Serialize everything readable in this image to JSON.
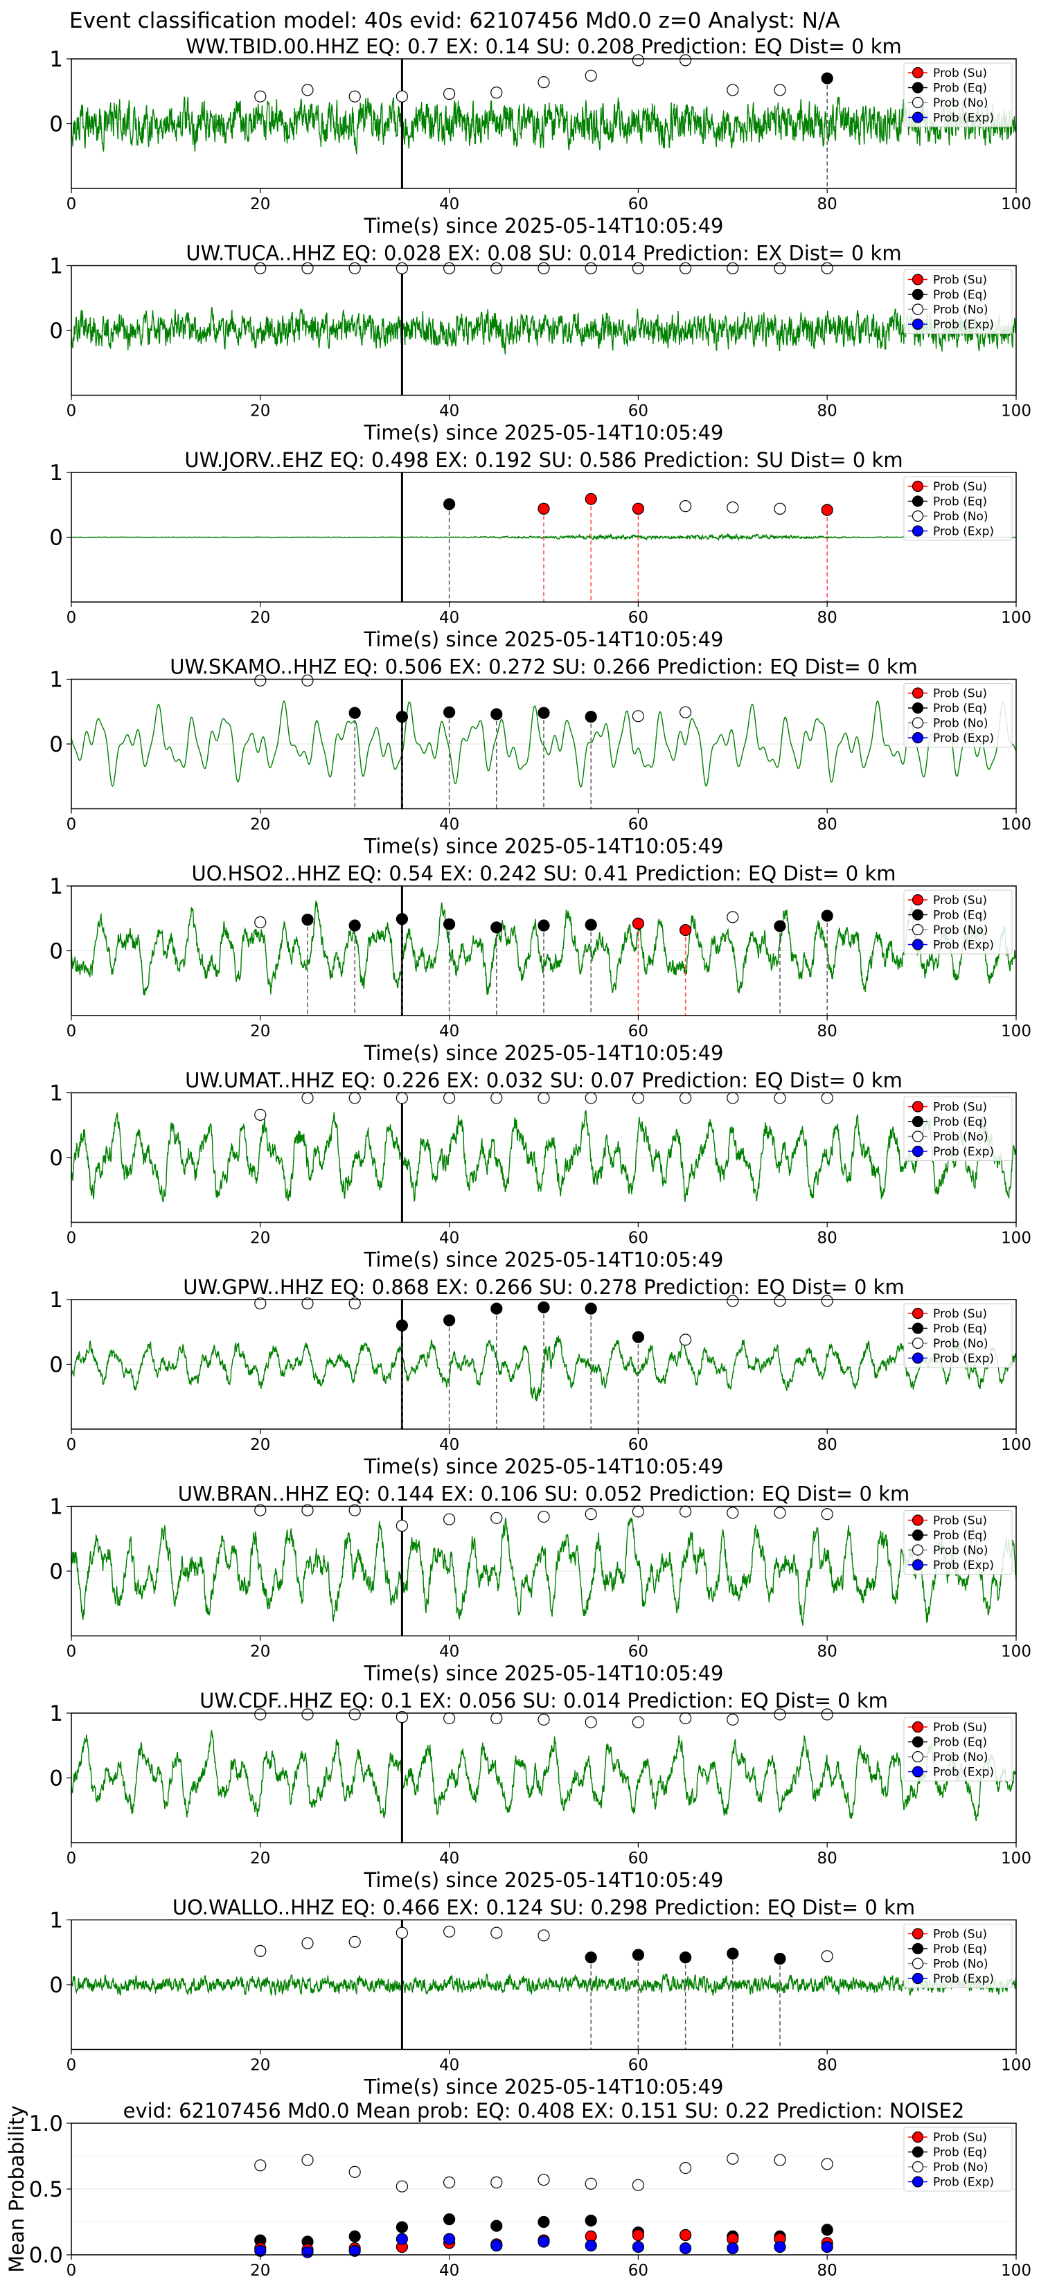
{
  "figure": {
    "suptitle": "Event classification model: 40s evid: 62107456 Md0.0 z=0 Analyst: N/A",
    "xlabel": "Time(s) since 2025-05-14T10:05:49",
    "legend": [
      "Prob (Su)",
      "Prob (Eq)",
      "Prob (No)",
      "Prob (Exp)"
    ],
    "colors": {
      "waveform": "#008000",
      "su": "#ff0000",
      "eq": "#000000",
      "no": "#ffffff",
      "exp": "#0000ff",
      "eq_line": "#555555",
      "su_line": "#ff4444"
    }
  },
  "chart_data": [
    {
      "type": "line",
      "station": "WW.TBID.00.HHZ",
      "title": "WW.TBID.00.HHZ   EQ: 0.7  EX: 0.14  SU: 0.208   Prediction: EQ    Dist= 0 km",
      "xlim": [
        0,
        100
      ],
      "ylim": [
        -1,
        1
      ],
      "xticks": [
        0,
        20,
        40,
        60,
        80,
        100
      ],
      "yticks": [
        0,
        1
      ],
      "arrival": 35,
      "noise_level": 0.32,
      "trace_style": "noisy",
      "envelope": [],
      "points": [
        {
          "x": 20,
          "y": 0.42,
          "cls": "no"
        },
        {
          "x": 25,
          "y": 0.52,
          "cls": "no"
        },
        {
          "x": 30,
          "y": 0.42,
          "cls": "no"
        },
        {
          "x": 35,
          "y": 0.42,
          "cls": "no"
        },
        {
          "x": 40,
          "y": 0.46,
          "cls": "no"
        },
        {
          "x": 45,
          "y": 0.48,
          "cls": "no"
        },
        {
          "x": 50,
          "y": 0.64,
          "cls": "no"
        },
        {
          "x": 55,
          "y": 0.74,
          "cls": "no"
        },
        {
          "x": 60,
          "y": 0.98,
          "cls": "no"
        },
        {
          "x": 65,
          "y": 0.98,
          "cls": "no"
        },
        {
          "x": 70,
          "y": 0.52,
          "cls": "no"
        },
        {
          "x": 75,
          "y": 0.52,
          "cls": "no"
        },
        {
          "x": 80,
          "y": 0.7,
          "cls": "eq"
        }
      ]
    },
    {
      "type": "line",
      "station": "UW.TUCA..HHZ",
      "title": "UW.TUCA..HHZ   EQ: 0.028  EX: 0.08  SU: 0.014   Prediction: EX    Dist= 0 km",
      "xlim": [
        0,
        100
      ],
      "ylim": [
        -1,
        1
      ],
      "xticks": [
        0,
        20,
        40,
        60,
        80,
        100
      ],
      "yticks": [
        0,
        1
      ],
      "arrival": 35,
      "noise_level": 0.26,
      "trace_style": "noisy",
      "envelope": [],
      "points": [
        {
          "x": 20,
          "y": 0.96,
          "cls": "no"
        },
        {
          "x": 25,
          "y": 0.96,
          "cls": "no"
        },
        {
          "x": 30,
          "y": 0.96,
          "cls": "no"
        },
        {
          "x": 35,
          "y": 0.96,
          "cls": "no"
        },
        {
          "x": 40,
          "y": 0.96,
          "cls": "no"
        },
        {
          "x": 45,
          "y": 0.96,
          "cls": "no"
        },
        {
          "x": 50,
          "y": 0.96,
          "cls": "no"
        },
        {
          "x": 55,
          "y": 0.96,
          "cls": "no"
        },
        {
          "x": 60,
          "y": 0.96,
          "cls": "no"
        },
        {
          "x": 65,
          "y": 0.96,
          "cls": "no"
        },
        {
          "x": 70,
          "y": 0.96,
          "cls": "no"
        },
        {
          "x": 75,
          "y": 0.96,
          "cls": "no"
        },
        {
          "x": 80,
          "y": 0.96,
          "cls": "no"
        }
      ]
    },
    {
      "type": "line",
      "station": "UW.JORV..EHZ",
      "title": "UW.JORV..EHZ   EQ: 0.498  EX: 0.192  SU: 0.586   Prediction: SU    Dist= 0 km",
      "xlim": [
        0,
        100
      ],
      "ylim": [
        -1,
        1
      ],
      "xticks": [
        0,
        20,
        40,
        60,
        80,
        100
      ],
      "yticks": [
        0,
        1
      ],
      "arrival": 35,
      "noise_level": 0.05,
      "trace_style": "noisy",
      "envelope": [
        {
          "x": 0,
          "a": 0.06
        },
        {
          "x": 40,
          "a": 0.08
        },
        {
          "x": 45,
          "a": 0.2
        },
        {
          "x": 52,
          "a": 0.4
        },
        {
          "x": 56,
          "a": 0.75
        },
        {
          "x": 60,
          "a": 0.55
        },
        {
          "x": 64,
          "a": 0.45
        },
        {
          "x": 69,
          "a": 0.8
        },
        {
          "x": 72,
          "a": 0.7
        },
        {
          "x": 78,
          "a": 0.35
        },
        {
          "x": 84,
          "a": 0.12
        },
        {
          "x": 100,
          "a": 0.05
        }
      ],
      "points": [
        {
          "x": 40,
          "y": 0.51,
          "cls": "eq"
        },
        {
          "x": 50,
          "y": 0.44,
          "cls": "su"
        },
        {
          "x": 55,
          "y": 0.59,
          "cls": "su"
        },
        {
          "x": 60,
          "y": 0.44,
          "cls": "su"
        },
        {
          "x": 65,
          "y": 0.48,
          "cls": "no"
        },
        {
          "x": 70,
          "y": 0.46,
          "cls": "no"
        },
        {
          "x": 75,
          "y": 0.44,
          "cls": "no"
        },
        {
          "x": 80,
          "y": 0.42,
          "cls": "su"
        }
      ]
    },
    {
      "type": "line",
      "station": "UW.SKAMO..HHZ",
      "title": "UW.SKAMO..HHZ   EQ: 0.506  EX: 0.272  SU: 0.266   Prediction: EQ    Dist= 0 km",
      "xlim": [
        0,
        100
      ],
      "ylim": [
        -1,
        1
      ],
      "xticks": [
        0,
        20,
        40,
        60,
        80,
        100
      ],
      "yticks": [
        0,
        1
      ],
      "arrival": 35,
      "noise_level": 0.45,
      "trace_style": "smooth",
      "envelope": [],
      "points": [
        {
          "x": 20,
          "y": 0.98,
          "cls": "no"
        },
        {
          "x": 25,
          "y": 0.98,
          "cls": "no"
        },
        {
          "x": 30,
          "y": 0.48,
          "cls": "eq"
        },
        {
          "x": 35,
          "y": 0.42,
          "cls": "eq"
        },
        {
          "x": 40,
          "y": 0.49,
          "cls": "eq"
        },
        {
          "x": 45,
          "y": 0.46,
          "cls": "eq"
        },
        {
          "x": 50,
          "y": 0.48,
          "cls": "eq"
        },
        {
          "x": 55,
          "y": 0.42,
          "cls": "eq"
        },
        {
          "x": 60,
          "y": 0.43,
          "cls": "no"
        },
        {
          "x": 65,
          "y": 0.49,
          "cls": "no"
        }
      ]
    },
    {
      "type": "line",
      "station": "UO.HSO2..HHZ",
      "title": "UO.HSO2..HHZ   EQ: 0.54  EX: 0.242  SU: 0.41   Prediction: EQ    Dist= 0 km",
      "xlim": [
        0,
        100
      ],
      "ylim": [
        -1,
        1
      ],
      "xticks": [
        0,
        20,
        40,
        60,
        80,
        100
      ],
      "yticks": [
        0,
        1
      ],
      "arrival": 35,
      "noise_level": 0.5,
      "trace_style": "mixed",
      "envelope": [],
      "points": [
        {
          "x": 20,
          "y": 0.44,
          "cls": "no"
        },
        {
          "x": 25,
          "y": 0.48,
          "cls": "eq"
        },
        {
          "x": 30,
          "y": 0.39,
          "cls": "eq"
        },
        {
          "x": 35,
          "y": 0.49,
          "cls": "eq"
        },
        {
          "x": 40,
          "y": 0.41,
          "cls": "eq"
        },
        {
          "x": 45,
          "y": 0.36,
          "cls": "eq"
        },
        {
          "x": 50,
          "y": 0.39,
          "cls": "eq"
        },
        {
          "x": 55,
          "y": 0.4,
          "cls": "eq"
        },
        {
          "x": 60,
          "y": 0.42,
          "cls": "su"
        },
        {
          "x": 65,
          "y": 0.32,
          "cls": "su"
        },
        {
          "x": 70,
          "y": 0.52,
          "cls": "no"
        },
        {
          "x": 75,
          "y": 0.38,
          "cls": "eq"
        },
        {
          "x": 80,
          "y": 0.54,
          "cls": "eq"
        }
      ]
    },
    {
      "type": "line",
      "station": "UW.UMAT..HHZ",
      "title": "UW.UMAT..HHZ   EQ: 0.226  EX: 0.032  SU: 0.07   Prediction: EQ    Dist= 0 km",
      "xlim": [
        0,
        100
      ],
      "ylim": [
        -1,
        1
      ],
      "xticks": [
        0,
        20,
        40,
        60,
        80,
        100
      ],
      "yticks": [
        0,
        1
      ],
      "arrival": 35,
      "noise_level": 0.55,
      "trace_style": "mixed",
      "envelope": [],
      "points": [
        {
          "x": 20,
          "y": 0.66,
          "cls": "no"
        },
        {
          "x": 25,
          "y": 0.92,
          "cls": "no"
        },
        {
          "x": 30,
          "y": 0.92,
          "cls": "no"
        },
        {
          "x": 35,
          "y": 0.92,
          "cls": "no"
        },
        {
          "x": 40,
          "y": 0.92,
          "cls": "no"
        },
        {
          "x": 45,
          "y": 0.92,
          "cls": "no"
        },
        {
          "x": 50,
          "y": 0.92,
          "cls": "no"
        },
        {
          "x": 55,
          "y": 0.92,
          "cls": "no"
        },
        {
          "x": 60,
          "y": 0.92,
          "cls": "no"
        },
        {
          "x": 65,
          "y": 0.92,
          "cls": "no"
        },
        {
          "x": 70,
          "y": 0.92,
          "cls": "no"
        },
        {
          "x": 75,
          "y": 0.92,
          "cls": "no"
        },
        {
          "x": 80,
          "y": 0.92,
          "cls": "no"
        }
      ]
    },
    {
      "type": "line",
      "station": "UW.GPW..HHZ",
      "title": "UW.GPW..HHZ   EQ: 0.868  EX: 0.266  SU: 0.278   Prediction: EQ    Dist= 0 km",
      "xlim": [
        0,
        100
      ],
      "ylim": [
        -1,
        1
      ],
      "xticks": [
        0,
        20,
        40,
        60,
        80,
        100
      ],
      "yticks": [
        0,
        1
      ],
      "arrival": 35,
      "noise_level": 0.32,
      "trace_style": "mixed",
      "envelope": [
        {
          "x": 0,
          "a": 1
        },
        {
          "x": 48,
          "a": 1
        },
        {
          "x": 49.5,
          "a": 2.6
        },
        {
          "x": 51,
          "a": 1.4
        },
        {
          "x": 53,
          "a": 1
        },
        {
          "x": 100,
          "a": 1
        }
      ],
      "points": [
        {
          "x": 20,
          "y": 0.94,
          "cls": "no"
        },
        {
          "x": 25,
          "y": 0.94,
          "cls": "no"
        },
        {
          "x": 30,
          "y": 0.94,
          "cls": "no"
        },
        {
          "x": 35,
          "y": 0.6,
          "cls": "eq"
        },
        {
          "x": 40,
          "y": 0.68,
          "cls": "eq"
        },
        {
          "x": 45,
          "y": 0.86,
          "cls": "eq"
        },
        {
          "x": 50,
          "y": 0.88,
          "cls": "eq"
        },
        {
          "x": 55,
          "y": 0.86,
          "cls": "eq"
        },
        {
          "x": 60,
          "y": 0.42,
          "cls": "eq"
        },
        {
          "x": 65,
          "y": 0.38,
          "cls": "no"
        },
        {
          "x": 70,
          "y": 0.98,
          "cls": "no"
        },
        {
          "x": 75,
          "y": 0.98,
          "cls": "no"
        },
        {
          "x": 80,
          "y": 0.98,
          "cls": "no"
        }
      ]
    },
    {
      "type": "line",
      "station": "UW.BRAN..HHZ",
      "title": "UW.BRAN..HHZ   EQ: 0.144  EX: 0.106  SU: 0.052   Prediction: EQ    Dist= 0 km",
      "xlim": [
        0,
        100
      ],
      "ylim": [
        -1,
        1
      ],
      "xticks": [
        0,
        20,
        40,
        60,
        80,
        100
      ],
      "yticks": [
        0,
        1
      ],
      "arrival": 35,
      "noise_level": 0.6,
      "trace_style": "mixed",
      "envelope": [],
      "points": [
        {
          "x": 20,
          "y": 0.94,
          "cls": "no"
        },
        {
          "x": 25,
          "y": 0.94,
          "cls": "no"
        },
        {
          "x": 30,
          "y": 0.94,
          "cls": "no"
        },
        {
          "x": 35,
          "y": 0.7,
          "cls": "no"
        },
        {
          "x": 40,
          "y": 0.8,
          "cls": "no"
        },
        {
          "x": 45,
          "y": 0.82,
          "cls": "no"
        },
        {
          "x": 50,
          "y": 0.84,
          "cls": "no"
        },
        {
          "x": 55,
          "y": 0.88,
          "cls": "no"
        },
        {
          "x": 60,
          "y": 0.92,
          "cls": "no"
        },
        {
          "x": 65,
          "y": 0.92,
          "cls": "no"
        },
        {
          "x": 70,
          "y": 0.9,
          "cls": "no"
        },
        {
          "x": 75,
          "y": 0.9,
          "cls": "no"
        },
        {
          "x": 80,
          "y": 0.88,
          "cls": "no"
        }
      ]
    },
    {
      "type": "line",
      "station": "UW.CDF..HHZ",
      "title": "UW.CDF..HHZ   EQ: 0.1  EX: 0.056  SU: 0.014   Prediction: EQ    Dist= 0 km",
      "xlim": [
        0,
        100
      ],
      "ylim": [
        -1,
        1
      ],
      "xticks": [
        0,
        20,
        40,
        60,
        80,
        100
      ],
      "yticks": [
        0,
        1
      ],
      "arrival": 35,
      "noise_level": 0.5,
      "trace_style": "mixed",
      "envelope": [],
      "points": [
        {
          "x": 20,
          "y": 0.98,
          "cls": "no"
        },
        {
          "x": 25,
          "y": 0.98,
          "cls": "no"
        },
        {
          "x": 30,
          "y": 0.98,
          "cls": "no"
        },
        {
          "x": 35,
          "y": 0.94,
          "cls": "no"
        },
        {
          "x": 40,
          "y": 0.92,
          "cls": "no"
        },
        {
          "x": 45,
          "y": 0.92,
          "cls": "no"
        },
        {
          "x": 50,
          "y": 0.9,
          "cls": "no"
        },
        {
          "x": 55,
          "y": 0.86,
          "cls": "no"
        },
        {
          "x": 60,
          "y": 0.86,
          "cls": "no"
        },
        {
          "x": 65,
          "y": 0.92,
          "cls": "no"
        },
        {
          "x": 70,
          "y": 0.9,
          "cls": "no"
        },
        {
          "x": 75,
          "y": 0.98,
          "cls": "no"
        },
        {
          "x": 80,
          "y": 0.98,
          "cls": "no"
        }
      ]
    },
    {
      "type": "line",
      "station": "UO.WALLO..HHZ",
      "title": "UO.WALLO..HHZ   EQ: 0.466  EX: 0.124  SU: 0.298   Prediction: EQ    Dist= 0 km",
      "xlim": [
        0,
        100
      ],
      "ylim": [
        -1,
        1
      ],
      "xticks": [
        0,
        20,
        40,
        60,
        80,
        100
      ],
      "yticks": [
        0,
        1
      ],
      "arrival": 35,
      "noise_level": 0.12,
      "trace_style": "noisy",
      "envelope": [],
      "points": [
        {
          "x": 20,
          "y": 0.52,
          "cls": "no"
        },
        {
          "x": 25,
          "y": 0.64,
          "cls": "no"
        },
        {
          "x": 30,
          "y": 0.66,
          "cls": "no"
        },
        {
          "x": 35,
          "y": 0.8,
          "cls": "no"
        },
        {
          "x": 40,
          "y": 0.82,
          "cls": "no"
        },
        {
          "x": 45,
          "y": 0.8,
          "cls": "no"
        },
        {
          "x": 50,
          "y": 0.76,
          "cls": "no"
        },
        {
          "x": 55,
          "y": 0.42,
          "cls": "eq"
        },
        {
          "x": 60,
          "y": 0.46,
          "cls": "eq"
        },
        {
          "x": 65,
          "y": 0.42,
          "cls": "eq"
        },
        {
          "x": 70,
          "y": 0.48,
          "cls": "eq"
        },
        {
          "x": 75,
          "y": 0.4,
          "cls": "eq"
        },
        {
          "x": 80,
          "y": 0.44,
          "cls": "no"
        }
      ]
    },
    {
      "type": "scatter",
      "title": "evid: 62107456  Md0.0   Mean prob:   EQ: 0.408  EX: 0.151  SU: 0.22   Prediction: NOISE2",
      "ylabel": "Mean Probability",
      "xlim": [
        0,
        100
      ],
      "ylim": [
        0,
        1
      ],
      "xticks": [
        0,
        20,
        40,
        60,
        80,
        100
      ],
      "yticks": [
        0.0,
        0.5,
        1.0
      ],
      "x": [
        20,
        25,
        30,
        35,
        40,
        45,
        50,
        55,
        60,
        65,
        70,
        75,
        80
      ],
      "series": [
        {
          "name": "Prob (No)",
          "cls": "no",
          "values": [
            0.68,
            0.72,
            0.63,
            0.52,
            0.55,
            0.55,
            0.57,
            0.54,
            0.53,
            0.66,
            0.73,
            0.72,
            0.69
          ]
        },
        {
          "name": "Prob (Eq)",
          "cls": "eq",
          "values": [
            0.11,
            0.1,
            0.14,
            0.21,
            0.27,
            0.22,
            0.25,
            0.26,
            0.17,
            0.15,
            0.14,
            0.14,
            0.19
          ]
        },
        {
          "name": "Prob (Su)",
          "cls": "su",
          "values": [
            0.05,
            0.04,
            0.05,
            0.06,
            0.09,
            0.08,
            0.11,
            0.14,
            0.15,
            0.15,
            0.12,
            0.12,
            0.09
          ]
        },
        {
          "name": "Prob (Exp)",
          "cls": "exp",
          "values": [
            0.03,
            0.02,
            0.03,
            0.12,
            0.12,
            0.07,
            0.1,
            0.07,
            0.06,
            0.05,
            0.05,
            0.06,
            0.06
          ]
        }
      ]
    }
  ]
}
